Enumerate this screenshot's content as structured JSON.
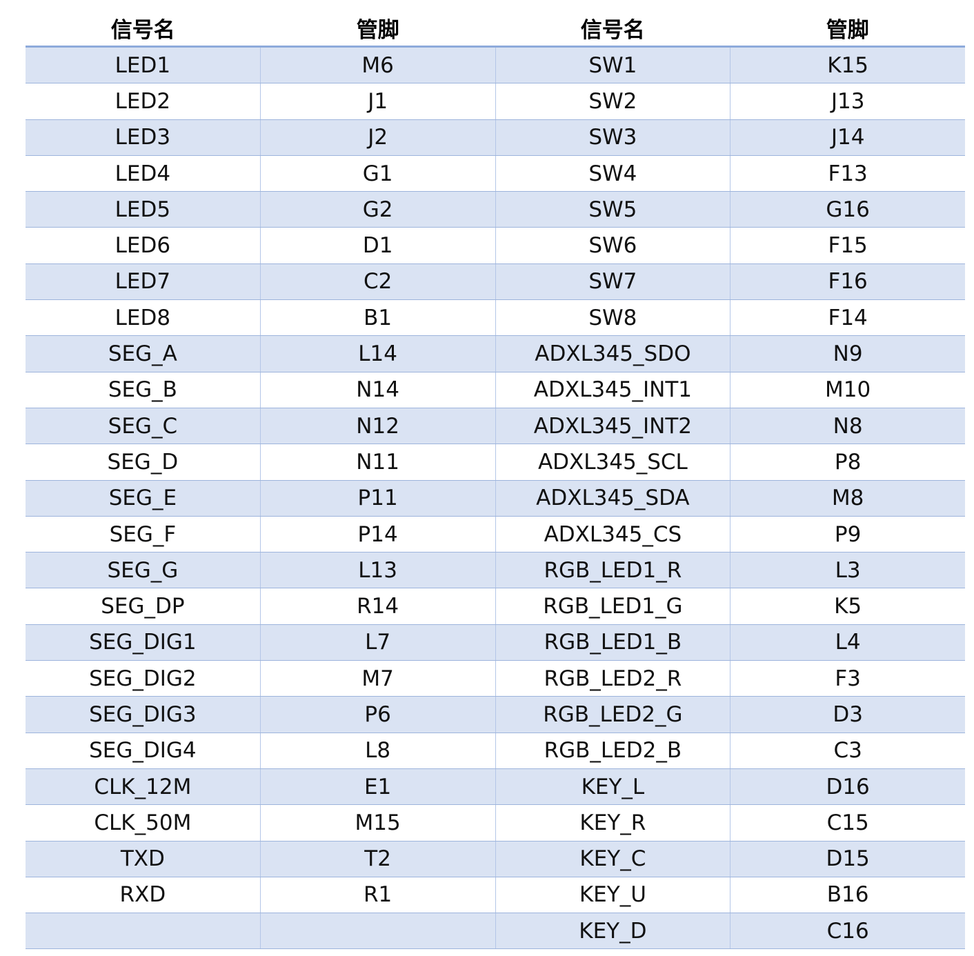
{
  "table": {
    "header": [
      "信号名",
      "管脚",
      "信号名",
      "管脚"
    ],
    "rows": [
      [
        "LED1",
        "M6",
        "SW1",
        "K15"
      ],
      [
        "LED2",
        "J1",
        "SW2",
        "J13"
      ],
      [
        "LED3",
        "J2",
        "SW3",
        "J14"
      ],
      [
        "LED4",
        "G1",
        "SW4",
        "F13"
      ],
      [
        "LED5",
        "G2",
        "SW5",
        "G16"
      ],
      [
        "LED6",
        "D1",
        "SW6",
        "F15"
      ],
      [
        "LED7",
        "C2",
        "SW7",
        "F16"
      ],
      [
        "LED8",
        "B1",
        "SW8",
        "F14"
      ],
      [
        "SEG_A",
        "L14",
        "ADXL345_SDO",
        "N9"
      ],
      [
        "SEG_B",
        "N14",
        "ADXL345_INT1",
        "M10"
      ],
      [
        "SEG_C",
        "N12",
        "ADXL345_INT2",
        "N8"
      ],
      [
        "SEG_D",
        "N11",
        "ADXL345_SCL",
        "P8"
      ],
      [
        "SEG_E",
        "P11",
        "ADXL345_SDA",
        "M8"
      ],
      [
        "SEG_F",
        "P14",
        "ADXL345_CS",
        "P9"
      ],
      [
        "SEG_G",
        "L13",
        "RGB_LED1_R",
        "L3"
      ],
      [
        "SEG_DP",
        "R14",
        "RGB_LED1_G",
        "K5"
      ],
      [
        "SEG_DIG1",
        "L7",
        "RGB_LED1_B",
        "L4"
      ],
      [
        "SEG_DIG2",
        "M7",
        "RGB_LED2_R",
        "F3"
      ],
      [
        "SEG_DIG3",
        "P6",
        "RGB_LED2_G",
        "D3"
      ],
      [
        "SEG_DIG4",
        "L8",
        "RGB_LED2_B",
        "C3"
      ],
      [
        "CLK_12M",
        "E1",
        "KEY_L",
        "D16"
      ],
      [
        "CLK_50M",
        "M15",
        "KEY_R",
        "C15"
      ],
      [
        "TXD",
        "T2",
        "KEY_C",
        "D15"
      ],
      [
        "RXD",
        "R1",
        "KEY_U",
        "B16"
      ],
      [
        null,
        null,
        "KEY_D",
        "C16"
      ]
    ]
  }
}
